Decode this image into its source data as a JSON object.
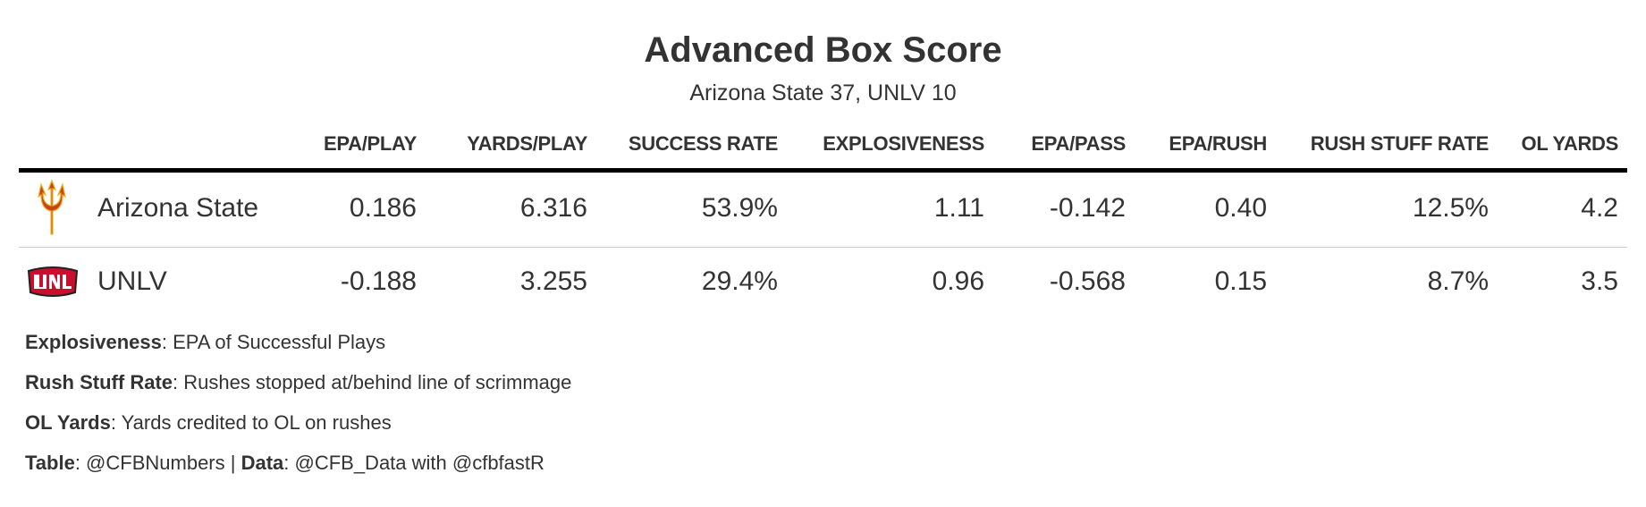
{
  "header": {
    "title": "Advanced Box Score",
    "subtitle": "Arizona State 37, UNLV 10"
  },
  "table": {
    "columns": [
      "EPA/PLAY",
      "YARDS/PLAY",
      "SUCCESS RATE",
      "EXPLOSIVENESS",
      "EPA/PASS",
      "EPA/RUSH",
      "RUSH STUFF RATE",
      "OL YARDS"
    ],
    "rows": [
      {
        "team": "Arizona State",
        "cells": [
          "0.186",
          "6.316",
          "53.9%",
          "1.11",
          "-0.142",
          "0.40",
          "12.5%",
          "4.2"
        ]
      },
      {
        "team": "UNLV",
        "cells": [
          "-0.188",
          "3.255",
          "29.4%",
          "0.96",
          "-0.568",
          "0.15",
          "8.7%",
          "3.5"
        ]
      }
    ]
  },
  "footnotes": [
    [
      {
        "bold": "Explosiveness",
        "text": ": EPA of Successful Plays"
      }
    ],
    [
      {
        "bold": "Rush Stuff Rate",
        "text": ": Rushes stopped at/behind line of scrimmage"
      }
    ],
    [
      {
        "bold": "OL Yards",
        "text": ": Yards credited to OL on rushes"
      }
    ],
    [
      {
        "bold": "Table",
        "text": ": @CFBNumbers | "
      },
      {
        "bold": "Data",
        "text": ": @CFB_Data with @cfbfastR"
      }
    ]
  ]
}
